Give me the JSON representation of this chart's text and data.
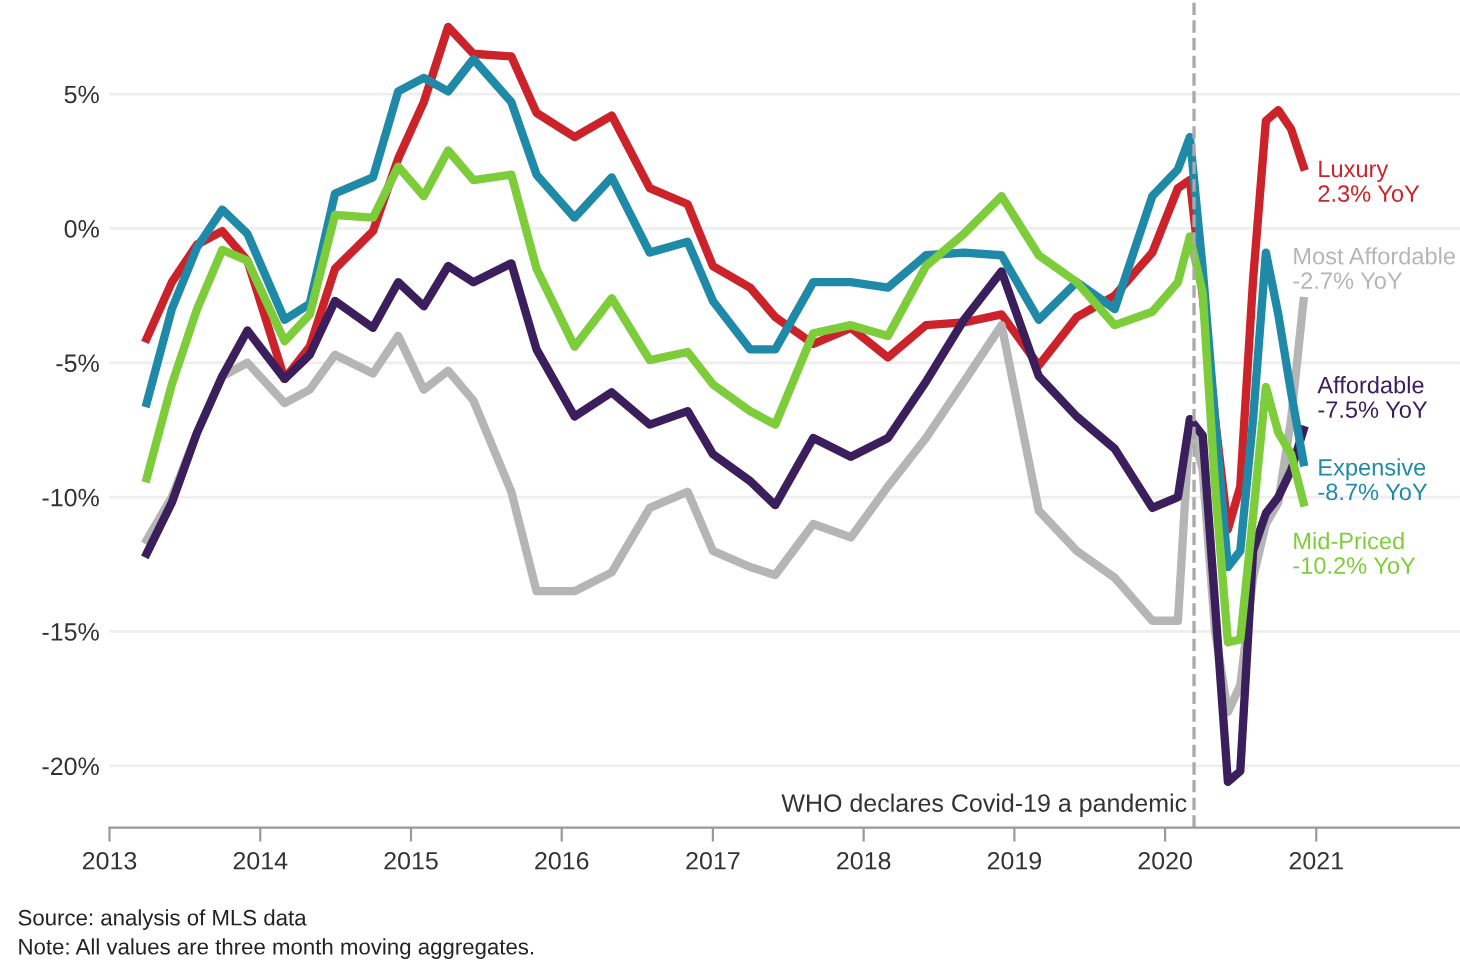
{
  "chart_data": {
    "type": "line",
    "x": [
      "2013-04",
      "2013-06",
      "2013-08",
      "2013-10",
      "2013-12",
      "2014-03",
      "2014-05",
      "2014-07",
      "2014-10",
      "2014-12",
      "2015-02",
      "2015-04",
      "2015-06",
      "2015-09",
      "2015-11",
      "2016-02",
      "2016-05",
      "2016-08",
      "2016-11",
      "2017-01",
      "2017-04",
      "2017-06",
      "2017-09",
      "2017-12",
      "2018-03",
      "2018-06",
      "2018-09",
      "2018-12",
      "2019-03",
      "2019-06",
      "2019-09",
      "2019-12",
      "2020-02",
      "2020-03",
      "2020-04",
      "2020-05",
      "2020-06",
      "2020-07",
      "2020-08",
      "2020-09",
      "2020-10",
      "2020-11",
      "2020-12"
    ],
    "series": [
      {
        "name": "Luxury",
        "color": "#cc2229",
        "values": [
          -4.1,
          -2.0,
          -0.6,
          -0.1,
          -1.2,
          -5.6,
          -4.4,
          -1.5,
          -0.1,
          2.6,
          4.7,
          7.5,
          6.5,
          6.4,
          4.3,
          3.4,
          4.2,
          1.5,
          0.9,
          -1.4,
          -2.2,
          -3.3,
          -4.3,
          -3.7,
          -4.8,
          -3.6,
          -3.5,
          -3.2,
          -5.1,
          -3.3,
          -2.5,
          -0.9,
          1.5,
          1.8,
          -2.5,
          -7.1,
          -11.2,
          -9.6,
          -1.9,
          4.0,
          4.4,
          3.7,
          2.3
        ]
      },
      {
        "name": "Most Affordable",
        "color": "#b5b5b5",
        "values": [
          -11.6,
          -10.0,
          -7.6,
          -5.5,
          -5.0,
          -6.5,
          -6.0,
          -4.7,
          -5.4,
          -4.0,
          -6.0,
          -5.3,
          -6.4,
          -9.8,
          -13.5,
          -13.5,
          -12.8,
          -10.4,
          -9.8,
          -12.0,
          -12.6,
          -12.9,
          -11.0,
          -11.5,
          -9.6,
          -7.8,
          -5.7,
          -3.6,
          -10.5,
          -12.0,
          -13.0,
          -14.6,
          -14.6,
          -7.1,
          -9.0,
          -15.0,
          -18.0,
          -17.0,
          -13.0,
          -11.0,
          -10.2,
          -7.1,
          -2.7
        ]
      },
      {
        "name": "Affordable",
        "color": "#3a1f5c",
        "values": [
          -12.1,
          -10.2,
          -7.6,
          -5.5,
          -3.8,
          -5.6,
          -4.7,
          -2.7,
          -3.7,
          -2.0,
          -2.9,
          -1.4,
          -2.0,
          -1.3,
          -4.5,
          -7.0,
          -6.1,
          -7.3,
          -6.8,
          -8.4,
          -9.4,
          -10.3,
          -7.8,
          -8.5,
          -7.8,
          -5.7,
          -3.4,
          -1.6,
          -5.5,
          -7.0,
          -8.2,
          -10.4,
          -10.0,
          -7.1,
          -7.7,
          -14.0,
          -20.6,
          -20.2,
          -12.0,
          -10.6,
          -10.0,
          -9.0,
          -7.5
        ]
      },
      {
        "name": "Expensive",
        "color": "#1f8aa8",
        "values": [
          -6.5,
          -3.0,
          -0.7,
          0.7,
          -0.2,
          -3.4,
          -2.8,
          1.3,
          1.9,
          5.1,
          5.6,
          5.1,
          6.3,
          4.7,
          2.0,
          0.4,
          1.9,
          -0.9,
          -0.5,
          -2.7,
          -4.5,
          -4.5,
          -2.0,
          -2.0,
          -2.2,
          -1.0,
          -0.9,
          -1.0,
          -3.4,
          -2.0,
          -3.0,
          1.2,
          2.2,
          3.4,
          -1.5,
          -7.1,
          -12.6,
          -12.0,
          -7.1,
          -0.9,
          -3.2,
          -6.1,
          -8.7
        ]
      },
      {
        "name": "Mid-Priced",
        "color": "#7dcc3a",
        "values": [
          -9.3,
          -5.8,
          -3.0,
          -0.8,
          -1.2,
          -4.2,
          -3.2,
          0.5,
          0.4,
          2.3,
          1.2,
          2.9,
          1.8,
          2.0,
          -1.5,
          -4.4,
          -2.6,
          -4.9,
          -4.6,
          -5.8,
          -6.8,
          -7.3,
          -3.9,
          -3.6,
          -4.0,
          -1.4,
          -0.2,
          1.2,
          -1.0,
          -2.0,
          -3.6,
          -3.1,
          -2.0,
          -0.3,
          -2.4,
          -9.6,
          -15.4,
          -15.3,
          -10.7,
          -5.9,
          -7.6,
          -8.4,
          -10.2
        ]
      }
    ],
    "xlim": [
      "2013-01-01",
      "2021-12-15"
    ],
    "xticks": [
      {
        "value": "2013-01-01",
        "label": "2013"
      },
      {
        "value": "2014-01-01",
        "label": "2014"
      },
      {
        "value": "2015-01-01",
        "label": "2015"
      },
      {
        "value": "2016-01-01",
        "label": "2016"
      },
      {
        "value": "2017-01-01",
        "label": "2017"
      },
      {
        "value": "2018-01-01",
        "label": "2018"
      },
      {
        "value": "2019-01-01",
        "label": "2019"
      },
      {
        "value": "2020-01-01",
        "label": "2020"
      },
      {
        "value": "2021-01-01",
        "label": "2021"
      }
    ],
    "ylim": [
      -22.3,
      8.5
    ],
    "yticks": [
      {
        "value": -20,
        "label": "-20%"
      },
      {
        "value": -15,
        "label": "-15%"
      },
      {
        "value": -10,
        "label": "-10%"
      },
      {
        "value": -5,
        "label": "-5%"
      },
      {
        "value": 0,
        "label": "0%"
      },
      {
        "value": 5,
        "label": "5%"
      }
    ],
    "grid": "y",
    "line_style": "solid",
    "ref_lines": [
      {
        "axis": "x",
        "value": "2020-03-11",
        "label": "WHO declares Covid-19 a pandemic",
        "color": "#aaaaaa",
        "line_style": "dashed"
      }
    ],
    "annotations": [
      "2.3% YoY",
      "-2.7% YoY",
      "-7.5% YoY",
      "-8.7% YoY",
      "-10.2% YoY",
      "Source: analysis of MLS data",
      "Note: All values are three month moving aggregates."
    ]
  }
}
